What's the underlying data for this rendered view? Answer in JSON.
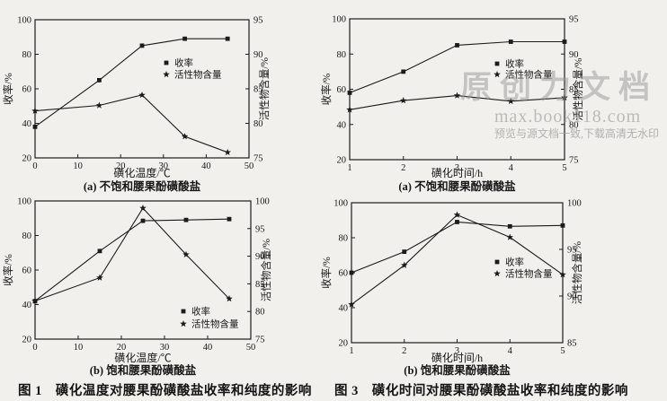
{
  "colors": {
    "line": "#1b1b1b",
    "text": "#171717",
    "background": "#f2f0ec",
    "watermark": "#969696"
  },
  "watermark": {
    "brand": "原创力文档",
    "url": "max.book118.com",
    "note": "预览与源文档一致,下载高清无水印"
  },
  "figures": {
    "fig1_caption": "图 1　磺化温度对腰果酚磺酸盐收率和纯度的影响",
    "fig3_caption": "图 3　磺化时间对腰果酚磺酸盐收率和纯度的影响"
  },
  "chart_data": [
    {
      "type": "line",
      "id": "fig1a",
      "caption": "(a) 不饱和腰果酚磺酸盐",
      "x_axis": {
        "label": "磺化温度/℃",
        "min": 0,
        "max": 50,
        "ticks": [
          0,
          10,
          20,
          30,
          40,
          50
        ]
      },
      "left_axis": {
        "label": "收率/%",
        "min": 20,
        "max": 100,
        "ticks": [
          20,
          40,
          60,
          80,
          100
        ]
      },
      "right_axis": {
        "label": "活性物含量/%",
        "min": 75,
        "max": 95,
        "ticks": [
          75,
          80,
          85,
          90,
          95
        ]
      },
      "grid": false,
      "legend_position": "upper-right-inside",
      "series": [
        {
          "name": "收率",
          "axis": "left",
          "marker": "square",
          "x": [
            0,
            15,
            25,
            35,
            45
          ],
          "y": [
            38,
            65,
            85,
            89,
            89
          ]
        },
        {
          "name": "活性物含量",
          "axis": "right",
          "marker": "star",
          "x": [
            0,
            15,
            25,
            35,
            45
          ],
          "y": [
            81.8,
            82.6,
            84.1,
            78.1,
            75.8
          ]
        }
      ]
    },
    {
      "type": "line",
      "id": "fig3a",
      "caption": "(a) 不饱和腰果酚磺酸盐",
      "x_axis": {
        "label": "磺化时间/h",
        "min": 1,
        "max": 5,
        "ticks": [
          1,
          2,
          3,
          4,
          5
        ]
      },
      "left_axis": {
        "label": "收率/%",
        "min": 20,
        "max": 100,
        "ticks": [
          20,
          40,
          60,
          80,
          100
        ]
      },
      "right_axis": {
        "label": "活性物含量/%",
        "min": 75,
        "max": 95,
        "ticks": [
          75,
          80,
          85,
          90,
          95
        ]
      },
      "grid": false,
      "legend_position": "upper-right-inside",
      "series": [
        {
          "name": "收率",
          "axis": "left",
          "marker": "square",
          "x": [
            1,
            2,
            3,
            4,
            5
          ],
          "y": [
            58,
            70,
            85,
            87,
            87
          ]
        },
        {
          "name": "活性物含量",
          "axis": "right",
          "marker": "star",
          "x": [
            1,
            2,
            3,
            4,
            5
          ],
          "y": [
            82.1,
            83.4,
            84.1,
            83.3,
            83.8
          ]
        }
      ]
    },
    {
      "type": "line",
      "id": "fig1b",
      "caption": "(b) 饱和腰果酚磺酸盐",
      "x_axis": {
        "label": "磺化温度/℃",
        "min": 0,
        "max": 50,
        "ticks": [
          0,
          10,
          20,
          30,
          40,
          50
        ]
      },
      "left_axis": {
        "label": "收率/%",
        "min": 20,
        "max": 100,
        "ticks": [
          20,
          40,
          60,
          80,
          100
        ]
      },
      "right_axis": {
        "label": "活性物含量/%",
        "min": 75,
        "max": 100,
        "ticks": [
          75,
          80,
          85,
          90,
          95,
          100
        ]
      },
      "grid": false,
      "legend_position": "lower-right-inside",
      "series": [
        {
          "name": "收率",
          "axis": "left",
          "marker": "square",
          "x": [
            0,
            15,
            25,
            35,
            45
          ],
          "y": [
            42,
            71,
            88.5,
            89,
            89.5
          ]
        },
        {
          "name": "活性物含量",
          "axis": "right",
          "marker": "star",
          "x": [
            0,
            15,
            25,
            35,
            45
          ],
          "y": [
            81.9,
            86.1,
            98.7,
            90.3,
            82.3
          ]
        }
      ]
    },
    {
      "type": "line",
      "id": "fig3b",
      "caption": "(b) 饱和腰果酚磺酸盐",
      "x_axis": {
        "label": "磺化时间/h",
        "min": 1,
        "max": 5,
        "ticks": [
          1,
          2,
          3,
          4,
          5
        ]
      },
      "left_axis": {
        "label": "收率/%",
        "min": 20,
        "max": 100,
        "ticks": [
          20,
          40,
          60,
          80,
          100
        ]
      },
      "right_axis": {
        "label": "活性物含量/%",
        "min": 85,
        "max": 100,
        "ticks": [
          85,
          90,
          95,
          100
        ]
      },
      "grid": false,
      "legend_position": "middle-right-inside",
      "series": [
        {
          "name": "收率",
          "axis": "left",
          "marker": "square",
          "x": [
            1,
            2,
            3,
            4,
            5
          ],
          "y": [
            60,
            72,
            89,
            86.5,
            87
          ]
        },
        {
          "name": "活性物含量",
          "axis": "right",
          "marker": "star",
          "x": [
            1,
            2,
            3,
            4,
            5
          ],
          "y": [
            89.1,
            93.3,
            98.7,
            96.3,
            92.3
          ]
        }
      ]
    }
  ]
}
